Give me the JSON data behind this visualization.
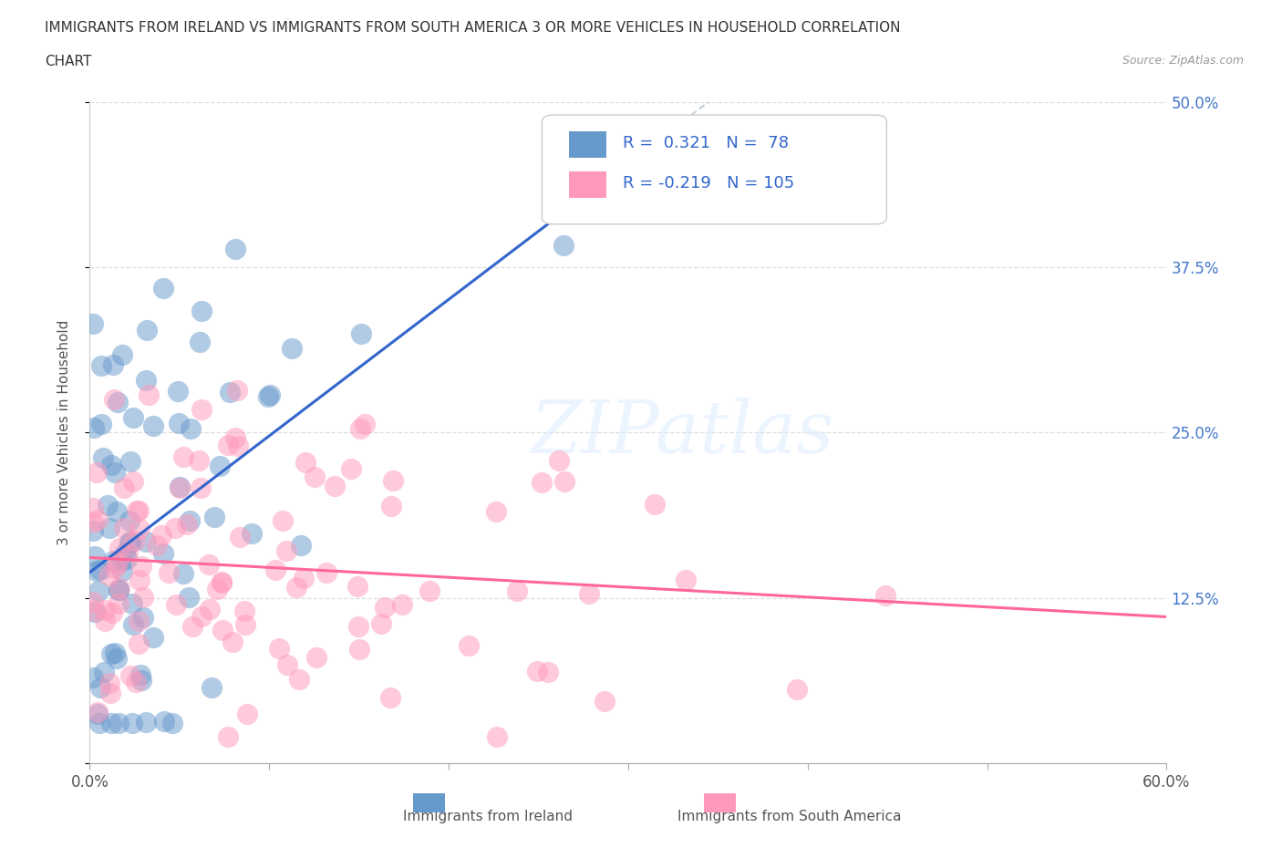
{
  "title_line1": "IMMIGRANTS FROM IRELAND VS IMMIGRANTS FROM SOUTH AMERICA 3 OR MORE VEHICLES IN HOUSEHOLD CORRELATION",
  "title_line2": "CHART",
  "source": "Source: ZipAtlas.com",
  "ylabel": "3 or more Vehicles in Household",
  "xlabel_ireland": "Immigrants from Ireland",
  "xlabel_southamerica": "Immigrants from South America",
  "R_ireland": 0.321,
  "N_ireland": 78,
  "R_southamerica": -0.219,
  "N_southamerica": 105,
  "xlim": [
    0.0,
    0.6
  ],
  "ylim": [
    0.0,
    0.5
  ],
  "color_ireland": "#6699CC",
  "color_southamerica": "#FF99BB",
  "trend_ireland": "#3366CC",
  "trend_southamerica": "#FF6699",
  "grid_color": "#DDDDDD",
  "background": "#FFFFFF",
  "tick_label_color": "#4477CC",
  "legend_r_color": "#3366CC",
  "legend_n_color": "#3366CC"
}
